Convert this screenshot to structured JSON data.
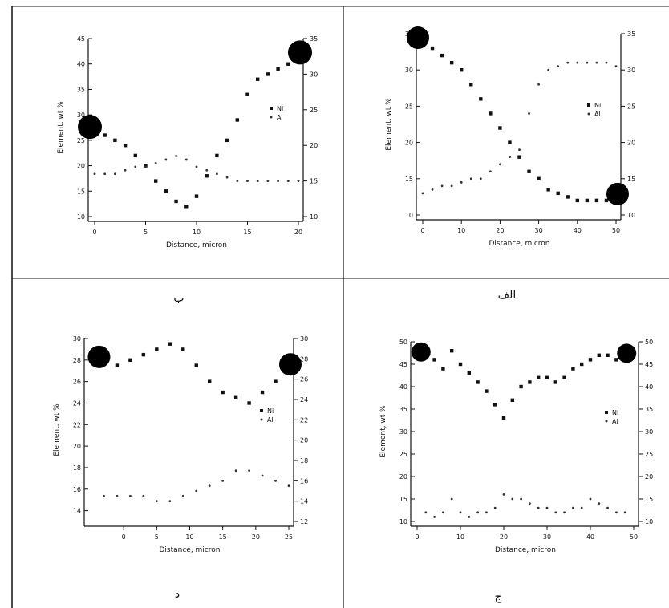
{
  "chart_data": [
    {
      "type": "line",
      "xlabel": "Distance, micron",
      "ylabel": "Element, wt %",
      "xlim": [
        0,
        20
      ],
      "ylim": [
        10,
        45
      ],
      "y2lim": [
        10,
        35
      ],
      "xticks": [
        "0",
        "5",
        "10",
        "15",
        "20"
      ],
      "yticks": [
        "10",
        "15",
        "20",
        "25",
        "30",
        "35",
        "40",
        "45"
      ],
      "y2ticks": [
        "10",
        "15",
        "20",
        "25",
        "30",
        "35"
      ],
      "legend": [
        "Ni",
        "Al"
      ],
      "legend_position": "middle-right",
      "caption": "ب",
      "series": [
        {
          "name": "Ni",
          "axis": "left",
          "x": [
            0,
            1,
            2,
            3,
            4,
            5,
            6,
            7,
            8,
            9,
            10,
            11,
            12,
            13,
            14,
            15,
            16,
            17,
            18,
            19,
            20
          ],
          "y": [
            27,
            26,
            25,
            24,
            22,
            20,
            17,
            15,
            13,
            12,
            14,
            18,
            22,
            25,
            29,
            34,
            37,
            38,
            39,
            40,
            41
          ]
        },
        {
          "name": "Al",
          "axis": "right",
          "x": [
            0,
            1,
            2,
            3,
            4,
            5,
            6,
            7,
            8,
            9,
            10,
            11,
            12,
            13,
            14,
            15,
            16,
            17,
            18,
            19,
            20
          ],
          "y": [
            16,
            16,
            16,
            16.5,
            17,
            17,
            17.5,
            18,
            18.5,
            18,
            17,
            16.5,
            16,
            15.5,
            15,
            15,
            15,
            15,
            15,
            15,
            15
          ]
        }
      ]
    },
    {
      "type": "line",
      "xlabel": "Distance, micron",
      "ylabel": "Element, wt %",
      "xlim": [
        0,
        50
      ],
      "ylim": [
        10,
        35
      ],
      "y2lim": [
        10,
        35
      ],
      "xticks": [
        "0",
        "10",
        "20",
        "30",
        "40",
        "50"
      ],
      "yticks": [
        "10",
        "15",
        "20",
        "25",
        "30",
        "35"
      ],
      "y2ticks": [
        "10",
        "15",
        "20",
        "25",
        "30",
        "35"
      ],
      "legend": [
        "Ni",
        "Al"
      ],
      "legend_position": "middle-right",
      "caption": "الف",
      "series": [
        {
          "name": "Ni",
          "axis": "left",
          "x": [
            0,
            2.5,
            5,
            7.5,
            10,
            12.5,
            15,
            17.5,
            20,
            22.5,
            25,
            27.5,
            30,
            32.5,
            35,
            37.5,
            40,
            42.5,
            45,
            47.5,
            50
          ],
          "y": [
            34,
            33,
            32,
            31,
            30,
            28,
            26,
            24,
            22,
            20,
            18,
            16,
            15,
            13.5,
            13,
            12.5,
            12,
            12,
            12,
            12,
            12
          ]
        },
        {
          "name": "Al",
          "axis": "right",
          "x": [
            0,
            2.5,
            5,
            7.5,
            10,
            12.5,
            15,
            17.5,
            20,
            22.5,
            25,
            27.5,
            30,
            32.5,
            35,
            37.5,
            40,
            42.5,
            45,
            47.5,
            50
          ],
          "y": [
            13,
            13.5,
            14,
            14,
            14.5,
            15,
            15,
            16,
            17,
            18,
            19,
            24,
            28,
            30,
            30.5,
            31,
            31,
            31,
            31,
            31,
            30.5
          ]
        }
      ]
    },
    {
      "type": "line",
      "xlabel": "Distance, micron",
      "ylabel": "Element, wt %",
      "xlim": [
        -5,
        25
      ],
      "ylim": [
        13,
        30
      ],
      "y2lim": [
        12,
        30
      ],
      "xticks": [
        "0",
        "5",
        "10",
        "15",
        "20",
        "25"
      ],
      "yticks": [
        "14",
        "16",
        "18",
        "20",
        "22",
        "24",
        "26",
        "28",
        "30"
      ],
      "y2ticks": [
        "12",
        "14",
        "16",
        "18",
        "20",
        "22",
        "24",
        "26",
        "28",
        "30"
      ],
      "legend": [
        "Ni",
        "Al"
      ],
      "legend_position": "middle-right",
      "caption": "د",
      "series": [
        {
          "name": "Ni",
          "axis": "left",
          "x": [
            -3,
            -1,
            1,
            3,
            5,
            7,
            9,
            11,
            13,
            15,
            17,
            19,
            21,
            23,
            25
          ],
          "y": [
            28,
            27.5,
            28,
            28.5,
            29,
            29.5,
            29,
            27.5,
            26,
            25,
            24.5,
            24,
            25,
            26,
            27
          ]
        },
        {
          "name": "Al",
          "axis": "right",
          "x": [
            -3,
            -1,
            1,
            3,
            5,
            7,
            9,
            11,
            13,
            15,
            17,
            19,
            21,
            23,
            25
          ],
          "y": [
            14.5,
            14.5,
            14.5,
            14.5,
            14,
            14,
            14.5,
            15,
            15.5,
            16,
            17,
            17,
            16.5,
            16,
            15.5
          ]
        }
      ]
    },
    {
      "type": "line",
      "xlabel": "Distance, micron",
      "ylabel": "Element, wt %",
      "xlim": [
        0,
        50
      ],
      "ylim": [
        10,
        50
      ],
      "y2lim": [
        10,
        50
      ],
      "xticks": [
        "0",
        "10",
        "20",
        "30",
        "40",
        "50"
      ],
      "yticks": [
        "10",
        "15",
        "20",
        "25",
        "30",
        "35",
        "40",
        "45",
        "50"
      ],
      "y2ticks": [
        "10",
        "15",
        "20",
        "25",
        "30",
        "35",
        "40",
        "45",
        "50"
      ],
      "legend": [
        "Ni",
        "Al"
      ],
      "legend_position": "middle-right",
      "caption": "ج",
      "series": [
        {
          "name": "Ni",
          "axis": "left",
          "x": [
            2,
            4,
            6,
            8,
            10,
            12,
            14,
            16,
            18,
            20,
            22,
            24,
            26,
            28,
            30,
            32,
            34,
            36,
            38,
            40,
            42,
            44,
            46,
            48
          ],
          "y": [
            47,
            46,
            44,
            48,
            45,
            43,
            41,
            39,
            36,
            33,
            37,
            40,
            41,
            42,
            42,
            41,
            42,
            44,
            45,
            46,
            47,
            47,
            46,
            46
          ]
        },
        {
          "name": "Al",
          "axis": "right",
          "x": [
            2,
            4,
            6,
            8,
            10,
            12,
            14,
            16,
            18,
            20,
            22,
            24,
            26,
            28,
            30,
            32,
            34,
            36,
            38,
            40,
            42,
            44,
            46,
            48
          ],
          "y": [
            12,
            11,
            12,
            15,
            12,
            11,
            12,
            12,
            13,
            16,
            15,
            15,
            14,
            13,
            13,
            12,
            12,
            13,
            13,
            15,
            14,
            13,
            12,
            12
          ]
        }
      ]
    }
  ]
}
